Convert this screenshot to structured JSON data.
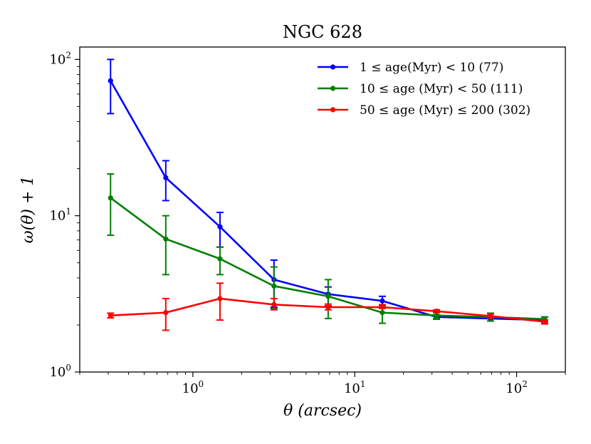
{
  "chart_data": {
    "type": "line",
    "title": "NGC 628",
    "xlabel": "θ (arcsec)",
    "ylabel": "ω(θ) + 1",
    "xscale": "log",
    "yscale": "log",
    "xlim": [
      0.2,
      200
    ],
    "ylim": [
      1,
      120
    ],
    "grid": false,
    "legend_position": "top-right",
    "x_ticks": [
      {
        "value": 1,
        "base": "10",
        "exp": "0"
      },
      {
        "value": 10,
        "base": "10",
        "exp": "1"
      },
      {
        "value": 100,
        "base": "10",
        "exp": "2"
      }
    ],
    "y_ticks": [
      {
        "value": 1,
        "base": "10",
        "exp": "0"
      },
      {
        "value": 10,
        "base": "10",
        "exp": "1"
      },
      {
        "value": 100,
        "base": "10",
        "exp": "2"
      }
    ],
    "series": [
      {
        "name": "1 ≤ age(Myr) < 10 (77)",
        "color": "#0000ff",
        "x": [
          0.31,
          0.68,
          1.47,
          3.17,
          6.85,
          14.8,
          32.0,
          69.0,
          149.0
        ],
        "y": [
          73,
          17.5,
          8.5,
          3.9,
          3.15,
          2.85,
          2.25,
          2.2,
          2.15
        ],
        "err_low": [
          45,
          12.5,
          6.3,
          2.6,
          2.65,
          2.6,
          2.18,
          2.12,
          2.05
        ],
        "err_high": [
          100,
          22.5,
          10.5,
          5.2,
          3.5,
          3.05,
          2.32,
          2.28,
          2.25
        ]
      },
      {
        "name": "10 ≤ age (Myr) < 50 (111)",
        "color": "#008000",
        "x": [
          0.31,
          0.68,
          1.47,
          3.17,
          6.85,
          14.8,
          32.0,
          69.0,
          149.0
        ],
        "y": [
          13,
          7.1,
          5.3,
          3.55,
          3.05,
          2.4,
          2.3,
          2.25,
          2.18
        ],
        "err_low": [
          7.5,
          4.2,
          4.2,
          2.55,
          2.2,
          2.05,
          2.2,
          2.12,
          2.1
        ],
        "err_high": [
          18.5,
          10,
          6.3,
          4.7,
          3.9,
          2.65,
          2.4,
          2.38,
          2.25
        ]
      },
      {
        "name": "50 ≤ age (Myr) ≤ 200 (302)",
        "color": "#ff0000",
        "x": [
          0.31,
          0.68,
          1.47,
          3.17,
          6.85,
          14.8,
          32.0,
          69.0,
          149.0
        ],
        "y": [
          2.3,
          2.4,
          2.95,
          2.7,
          2.6,
          2.6,
          2.45,
          2.28,
          2.1
        ],
        "err_low": [
          2.22,
          1.85,
          2.15,
          2.5,
          2.5,
          2.55,
          2.4,
          2.22,
          2.03
        ],
        "err_high": [
          2.38,
          2.95,
          3.7,
          2.95,
          2.72,
          2.7,
          2.5,
          2.35,
          2.15
        ]
      }
    ]
  }
}
